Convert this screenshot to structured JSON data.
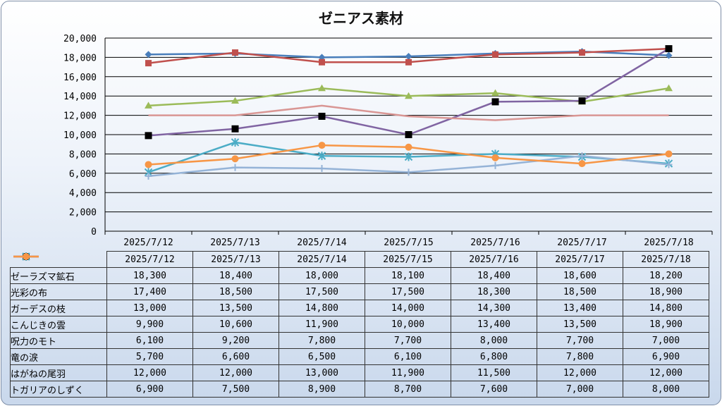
{
  "chart_data": {
    "type": "line",
    "title": "ゼニアス素材",
    "categories": [
      "2025/7/12",
      "2025/7/13",
      "2025/7/14",
      "2025/7/15",
      "2025/7/16",
      "2025/7/17",
      "2025/7/18"
    ],
    "ylim": [
      0,
      20000
    ],
    "y_ticks": [
      "20,000",
      "18,000",
      "16,000",
      "14,000",
      "12,000",
      "10,000",
      "8,000",
      "6,000",
      "4,000",
      "2,000",
      "0"
    ],
    "grid": true,
    "legend": "data-table",
    "series": [
      {
        "name": "ゼーラズマ鉱石",
        "color": "#4a7ebb",
        "marker": "diamond",
        "values": [
          18300,
          18400,
          18000,
          18100,
          18400,
          18600,
          18200
        ],
        "labels": [
          "18,300",
          "18,400",
          "18,000",
          "18,100",
          "18,400",
          "18,600",
          "18,200"
        ]
      },
      {
        "name": "光彩の布",
        "color": "#c0504d",
        "marker": "square",
        "values": [
          17400,
          18500,
          17500,
          17500,
          18300,
          18500,
          18900
        ],
        "labels": [
          "17,400",
          "18,500",
          "17,500",
          "17,500",
          "18,300",
          "18,500",
          "18,900"
        ]
      },
      {
        "name": "ガーデスの枝",
        "color": "#9bbb59",
        "marker": "triangle",
        "values": [
          13000,
          13500,
          14800,
          14000,
          14300,
          13400,
          14800
        ],
        "labels": [
          "13,000",
          "13,500",
          "14,800",
          "14,000",
          "14,300",
          "13,400",
          "14,800"
        ]
      },
      {
        "name": "こんじきの雲",
        "color": "#8064a2",
        "marker": "black-square",
        "values": [
          9900,
          10600,
          11900,
          10000,
          13400,
          13500,
          18900
        ],
        "labels": [
          "9,900",
          "10,600",
          "11,900",
          "10,000",
          "13,400",
          "13,500",
          "18,900"
        ]
      },
      {
        "name": "呪力のモト",
        "color": "#4bacc6",
        "marker": "asterisk",
        "values": [
          6100,
          9200,
          7800,
          7700,
          8000,
          7700,
          7000
        ],
        "labels": [
          "6,100",
          "9,200",
          "7,800",
          "7,700",
          "8,000",
          "7,700",
          "7,000"
        ]
      },
      {
        "name": "竜の涙",
        "color": "#95b3d7",
        "marker": "plus",
        "values": [
          5700,
          6600,
          6500,
          6100,
          6800,
          7800,
          6900
        ],
        "labels": [
          "5,700",
          "6,600",
          "6,500",
          "6,100",
          "6,800",
          "7,800",
          "6,900"
        ]
      },
      {
        "name": "はがねの尾羽",
        "color": "#d99694",
        "marker": "none",
        "values": [
          12000,
          12000,
          13000,
          11900,
          11500,
          12000,
          12000
        ],
        "labels": [
          "12,000",
          "12,000",
          "13,000",
          "11,900",
          "11,500",
          "12,000",
          "12,000"
        ]
      },
      {
        "name": "トガリアのしずく",
        "color": "#f79646",
        "marker": "circle",
        "values": [
          6900,
          7500,
          8900,
          8700,
          7600,
          7000,
          8000
        ],
        "labels": [
          "6,900",
          "7,500",
          "8,900",
          "8,700",
          "7,600",
          "7,000",
          "8,000"
        ]
      }
    ]
  }
}
